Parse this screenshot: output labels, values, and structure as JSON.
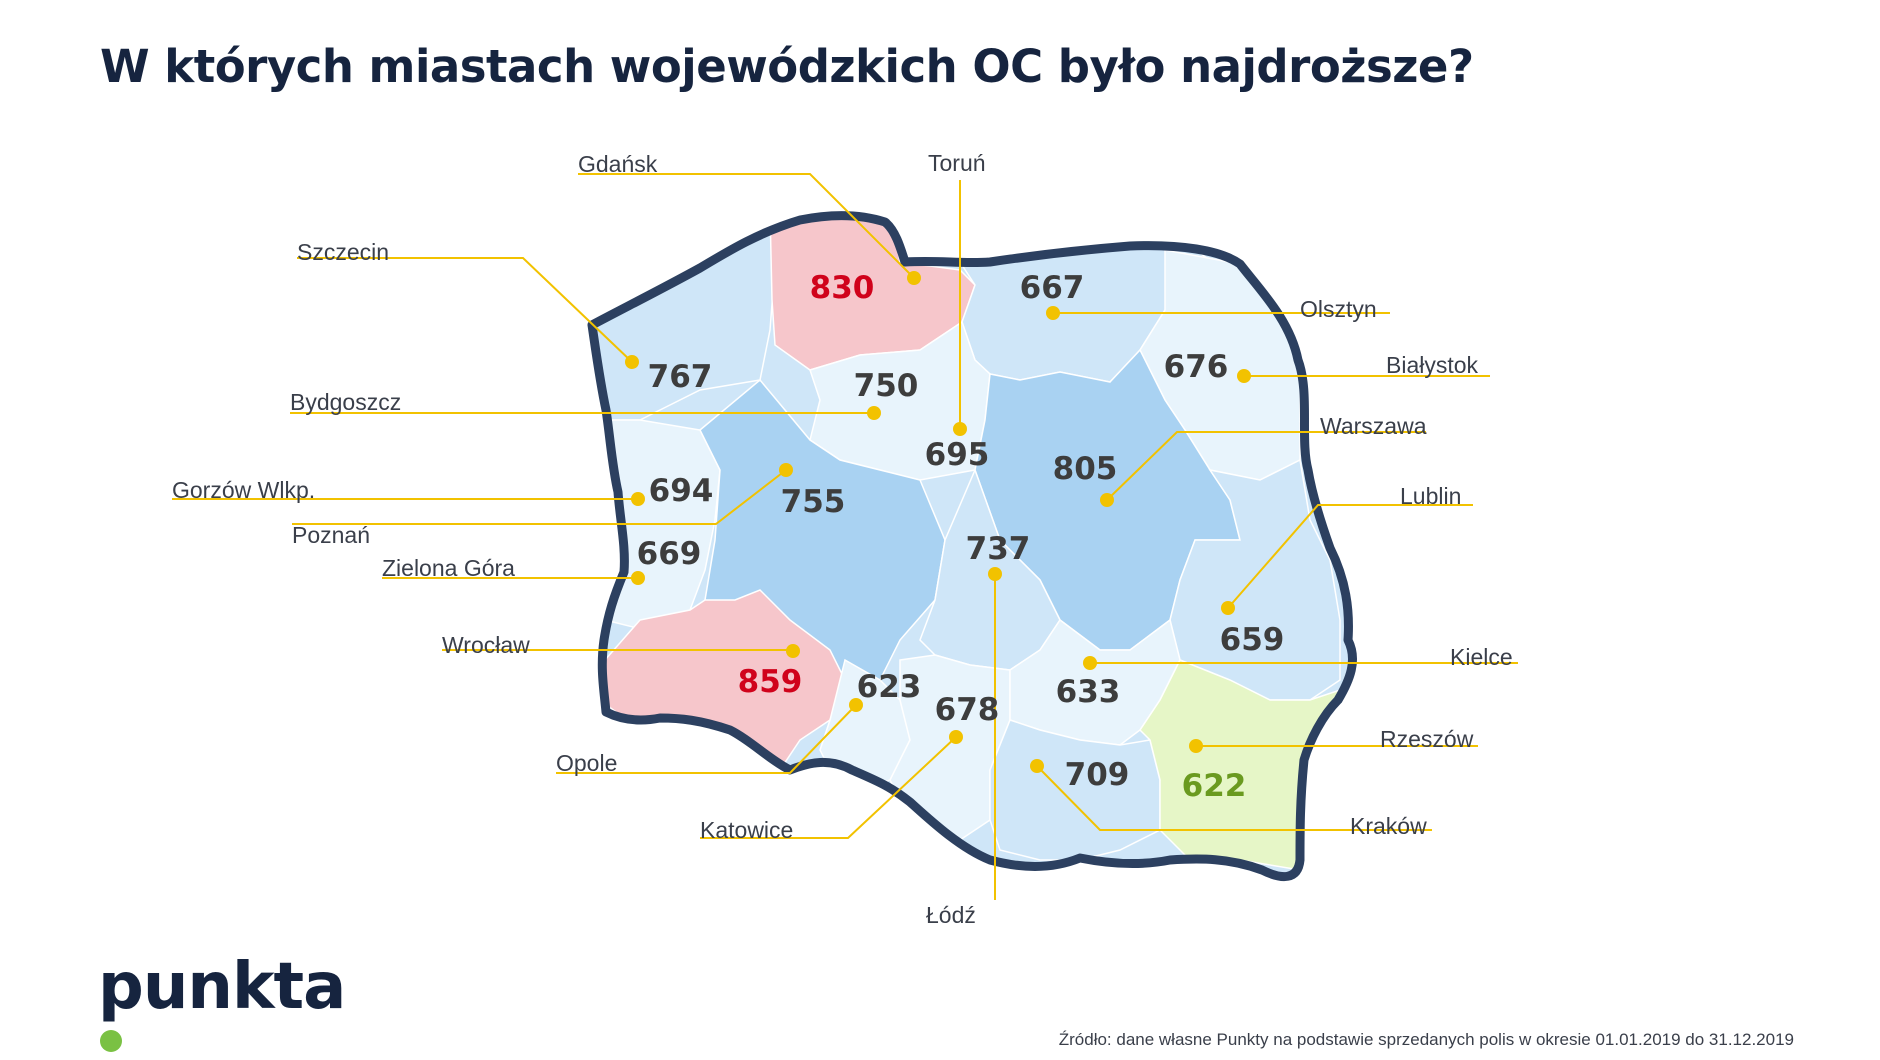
{
  "title": "W których miastach wojewódzkich OC było najdroższe?",
  "brand": {
    "name": "punkta",
    "dot_color": "#7ac143",
    "text_color": "#16243f"
  },
  "source": "Źródło: dane własne Punkty na podstawie sprzedanych polis w okresie 01.01.2019 do 31.12.2019",
  "colors": {
    "border": "#2c4060",
    "leader_line": "#f2c200",
    "label_text": "#3a3f4a",
    "value_text": "#3d3d3d",
    "expensive_value": "#d0021b",
    "cheap_value": "#6a9a1f",
    "region_expensive": "#f6c6cb",
    "region_cheap": "#e6f6c7",
    "region_light": "#e8f4fc",
    "region_mid": "#cfe6f8",
    "region_dark": "#a9d2f2"
  },
  "regions": [
    {
      "city": "Szczecin",
      "value": "767",
      "category": "mid"
    },
    {
      "city": "Gdańsk",
      "value": "830",
      "category": "expensive"
    },
    {
      "city": "Olsztyn",
      "value": "667",
      "category": "mid"
    },
    {
      "city": "Białystok",
      "value": "676",
      "category": "light"
    },
    {
      "city": "Bydgoszcz",
      "value": "750",
      "category": "light"
    },
    {
      "city": "Toruń",
      "value": "695",
      "category": "light"
    },
    {
      "city": "Gorzów Wlkp.",
      "value": "694",
      "category": "light"
    },
    {
      "city": "Poznań",
      "value": "755",
      "category": "dark"
    },
    {
      "city": "Warszawa",
      "value": "805",
      "category": "dark"
    },
    {
      "city": "Zielona Góra",
      "value": "669",
      "category": "light"
    },
    {
      "city": "Łódź",
      "value": "737",
      "category": "mid"
    },
    {
      "city": "Lublin",
      "value": "659",
      "category": "mid"
    },
    {
      "city": "Wrocław",
      "value": "859",
      "category": "expensive"
    },
    {
      "city": "Opole",
      "value": "623",
      "category": "light"
    },
    {
      "city": "Katowice",
      "value": "678",
      "category": "light"
    },
    {
      "city": "Kielce",
      "value": "633",
      "category": "light"
    },
    {
      "city": "Kraków",
      "value": "709",
      "category": "mid"
    },
    {
      "city": "Rzeszów",
      "value": "622",
      "category": "cheap"
    }
  ]
}
